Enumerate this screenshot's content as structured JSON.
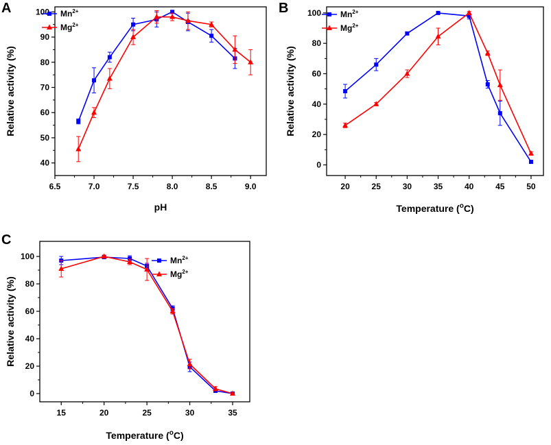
{
  "chart_data": [
    {
      "panel": "A",
      "type": "line",
      "xlabel": "pH",
      "ylabel": "Relative activity (%)",
      "xlim": [
        6.5,
        9.2
      ],
      "ylim": [
        35,
        102
      ],
      "xticks": [
        "6.5",
        "7.0",
        "7.5",
        "8.0",
        "8.5",
        "9.0"
      ],
      "yticks": [
        "40",
        "50",
        "60",
        "70",
        "80",
        "90",
        "100"
      ],
      "legend_position": "top-left",
      "series": [
        {
          "name": "Mn",
          "sup": "2+",
          "color": "#0000ff",
          "marker": "square",
          "x": [
            6.8,
            7.0,
            7.2,
            7.5,
            7.8,
            8.0,
            8.2,
            8.5,
            8.8
          ],
          "y": [
            56.5,
            72.8,
            82,
            95,
            97,
            100,
            96,
            90.5,
            81.5
          ],
          "err": [
            1,
            5,
            2,
            2.5,
            3,
            0.5,
            3.5,
            2.5,
            4
          ]
        },
        {
          "name": "Mg",
          "sup": "2+",
          "color": "#ff0000",
          "marker": "triangle",
          "x": [
            6.8,
            7.0,
            7.2,
            7.5,
            7.8,
            8.0,
            8.2,
            8.5,
            8.8,
            9.0
          ],
          "y": [
            45.5,
            60,
            73.5,
            90,
            98,
            98,
            96.5,
            95,
            85,
            80
          ],
          "err": [
            5,
            2,
            4,
            3,
            2.5,
            1.5,
            3.5,
            1,
            5.5,
            5
          ]
        }
      ]
    },
    {
      "panel": "B",
      "type": "line",
      "xlabel": "Temperature (",
      "xlabel_sup": "o",
      "xlabel_end": "C)",
      "ylabel": "Relative activity (%)",
      "xlim": [
        17,
        52
      ],
      "ylim": [
        -7,
        104
      ],
      "xticks": [
        "20",
        "25",
        "30",
        "35",
        "40",
        "45",
        "50"
      ],
      "yticks": [
        "0",
        "20",
        "40",
        "60",
        "80",
        "100"
      ],
      "legend_position": "top-left",
      "series": [
        {
          "name": "Mn",
          "sup": "2+",
          "color": "#0000ff",
          "marker": "square",
          "x": [
            20,
            25,
            30,
            35,
            40,
            43,
            45,
            50
          ],
          "y": [
            48.5,
            66,
            86.5,
            100,
            98,
            53,
            34,
            2
          ],
          "err": [
            4.5,
            4,
            1,
            0.5,
            2,
            2.5,
            8,
            1
          ]
        },
        {
          "name": "Mg",
          "sup": "2+",
          "color": "#ff0000",
          "marker": "triangle",
          "x": [
            20,
            25,
            30,
            35,
            40,
            43,
            45,
            50
          ],
          "y": [
            26,
            40,
            60,
            84.5,
            100,
            73.5,
            52.5,
            7.5
          ],
          "err": [
            1.5,
            1,
            2.5,
            5.5,
            1,
            1.5,
            10,
            1
          ]
        }
      ]
    },
    {
      "panel": "C",
      "type": "line",
      "xlabel": "Temperature (",
      "xlabel_sup": "o",
      "xlabel_end": "C)",
      "ylabel": "Relative activity (%)",
      "xlim": [
        12.5,
        37
      ],
      "ylim": [
        -6,
        111
      ],
      "xticks": [
        "15",
        "20",
        "25",
        "30",
        "35"
      ],
      "yticks": [
        "0",
        "20",
        "40",
        "60",
        "80",
        "100"
      ],
      "legend_position": "top-right",
      "series": [
        {
          "name": "Mn",
          "sup": "2+",
          "color": "#0000ff",
          "marker": "square",
          "x": [
            15,
            20,
            23,
            25,
            28,
            30,
            33,
            35
          ],
          "y": [
            97,
            99.5,
            98.5,
            93,
            62,
            19.5,
            2,
            0
          ],
          "err": [
            3,
            0.5,
            2,
            2,
            2,
            3.5,
            1,
            0.5
          ]
        },
        {
          "name": "Mg",
          "sup": "2+",
          "color": "#ff0000",
          "marker": "triangle",
          "x": [
            15,
            20,
            23,
            25,
            28,
            30,
            33,
            35
          ],
          "y": [
            91,
            100,
            96,
            90.5,
            60,
            21.5,
            3.5,
            0
          ],
          "err": [
            6,
            1,
            2,
            8,
            2,
            3.5,
            1.5,
            0.5
          ]
        }
      ]
    }
  ]
}
